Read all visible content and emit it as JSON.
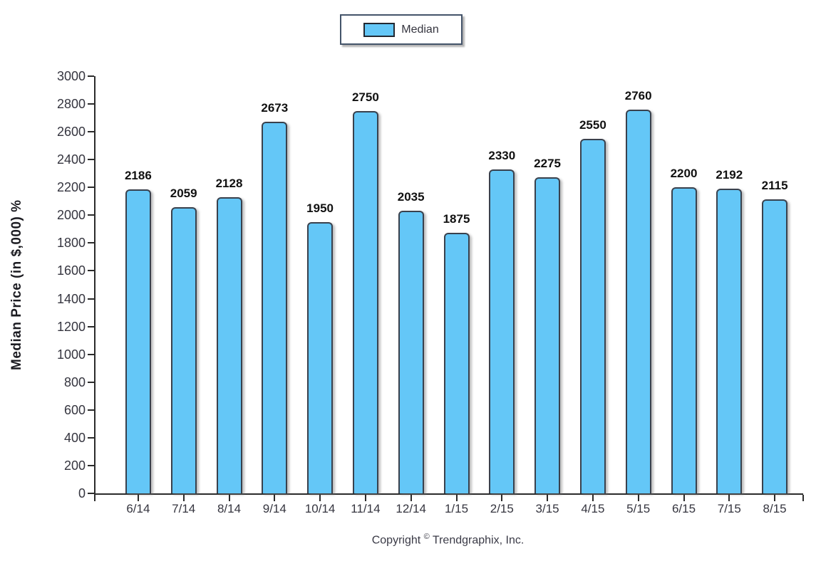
{
  "chart_data": {
    "type": "bar",
    "title": "",
    "legend_label": "Median",
    "legend_position": "top-center",
    "categories": [
      "6/14",
      "7/14",
      "8/14",
      "9/14",
      "10/14",
      "11/14",
      "12/14",
      "1/15",
      "2/15",
      "3/15",
      "4/15",
      "5/15",
      "6/15",
      "7/15",
      "8/15"
    ],
    "values": [
      2186,
      2059,
      2128,
      2673,
      1950,
      2750,
      2035,
      1875,
      2330,
      2275,
      2550,
      2760,
      2200,
      2192,
      2115
    ],
    "xlabel": "",
    "ylabel": "Median Price (in $,000) %",
    "ylim": [
      0,
      3000
    ],
    "ytick_step": 200,
    "grid": "off",
    "bar_color": "#64C7F7",
    "bar_border_color": "#39414d",
    "axis_color": "#2b2b2b",
    "value_label_color": "#111111"
  },
  "footer": {
    "copyright_prefix": "Copyright",
    "copyright_symbol": "©",
    "copyright_suffix": "Trendgraphix, Inc."
  }
}
